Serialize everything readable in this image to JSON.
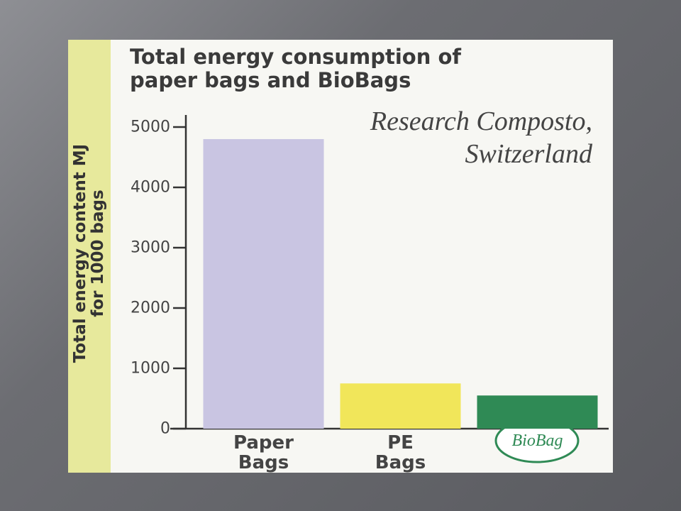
{
  "chart_data": {
    "type": "bar",
    "title": "Total energy consumption of paper bags and BioBags",
    "annotation": "Research Composto, Switzerland",
    "y_label": "Total energy content MJ for 1000 bags",
    "categories": [
      "Paper Bags",
      "PE Bags",
      "BioBag"
    ],
    "values": [
      4800,
      750,
      550
    ],
    "colors": [
      "#c9c5e2",
      "#f1e65a",
      "#2f8a55"
    ],
    "ylim": [
      0,
      5200
    ],
    "yticks": [
      0,
      1000,
      2000,
      3000,
      4000,
      5000
    ]
  }
}
